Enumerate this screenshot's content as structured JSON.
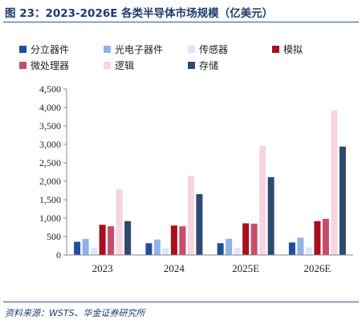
{
  "header": {
    "title": "图 23：2023-2026E 各类半导体市场规模（亿美元）"
  },
  "footer": {
    "source": "资料来源：WSTS、华金证券研究所"
  },
  "chart_data": {
    "type": "bar",
    "title": "图 23：2023-2026E 各类半导体市场规模（亿美元）",
    "categories": [
      "2023",
      "2024",
      "2025E",
      "2026E"
    ],
    "ylim": [
      0,
      4500
    ],
    "yticks": [
      0,
      500,
      1000,
      1500,
      2000,
      2500,
      3000,
      3500,
      4000,
      4500
    ],
    "ytick_labels": [
      "0",
      "500",
      "1,000",
      "1,500",
      "2,000",
      "2,500",
      "3,000",
      "3,500",
      "4,000",
      "4,500"
    ],
    "legend_position": "top",
    "grid": false,
    "series": [
      {
        "name": "分立器件",
        "color": "#1f4e9c",
        "values": [
          360,
          320,
          320,
          340
        ]
      },
      {
        "name": "光电子器件",
        "color": "#8fb3e8",
        "values": [
          440,
          420,
          440,
          470
        ]
      },
      {
        "name": "传感器",
        "color": "#d9e8f7",
        "values": [
          200,
          190,
          200,
          210
        ]
      },
      {
        "name": "模拟",
        "color": "#a80f1f",
        "values": [
          820,
          800,
          860,
          920
        ]
      },
      {
        "name": "微处理器",
        "color": "#c94c6c",
        "values": [
          780,
          780,
          850,
          980
        ]
      },
      {
        "name": "逻辑",
        "color": "#f7d4de",
        "values": [
          1780,
          2150,
          2960,
          3920
        ]
      },
      {
        "name": "存储",
        "color": "#2e4a70",
        "values": [
          920,
          1650,
          2110,
          2940
        ]
      }
    ]
  }
}
